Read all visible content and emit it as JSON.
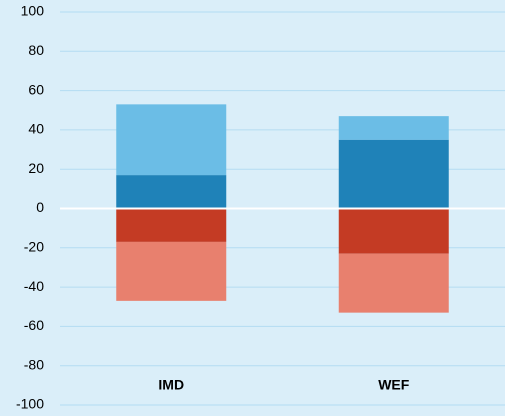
{
  "chart_data": {
    "type": "stacked_bar",
    "categories": [
      "IMD",
      "WEF"
    ],
    "series": [
      {
        "color": "#1f82b8",
        "values": [
          17,
          35
        ]
      },
      {
        "color": "#6bbde6",
        "values": [
          36,
          12
        ]
      },
      {
        "color": "#c43b24",
        "values": [
          -17,
          -23
        ]
      },
      {
        "color": "#e8806e",
        "values": [
          -30,
          -30
        ]
      }
    ],
    "ylim": [
      -100,
      100
    ],
    "yticks": [
      -100,
      -80,
      -60,
      -40,
      -20,
      0,
      20,
      40,
      60,
      80,
      100
    ],
    "grid": true
  }
}
